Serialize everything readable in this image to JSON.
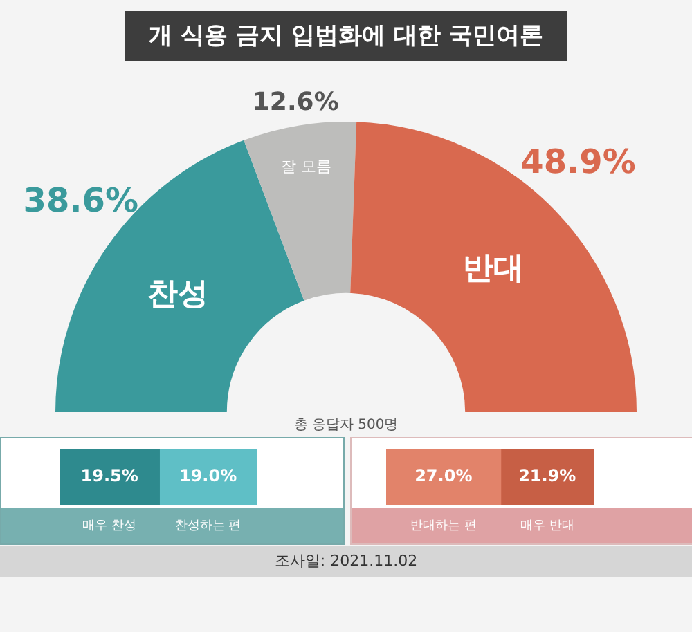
{
  "chart_data": [
    {
      "type": "donut",
      "title": "개 식용 금지 입법화에 대한 국민여론",
      "categories": [
        "찬성",
        "잘 모름",
        "반대"
      ],
      "values": [
        38.6,
        12.6,
        48.9
      ],
      "value_labels": [
        "38.6%",
        "12.6%",
        "48.9%"
      ],
      "colors": [
        "#3a9a9c",
        "#bdbdbb",
        "#d9694f"
      ],
      "annotations": [
        "총 응답자 500명",
        "조사일: 2021.11.02"
      ]
    },
    {
      "type": "bar",
      "orientation": "horizontal",
      "stacked": true,
      "categories": [
        null
      ],
      "series": [
        {
          "name": "매우 찬성",
          "color": "#2e8a8e",
          "values": [
            19.5
          ],
          "value_labels": [
            "19.5%"
          ]
        },
        {
          "name": "찬성하는 편",
          "color": "#5fbfc6",
          "values": [
            19.0
          ],
          "value_labels": [
            "19.0%"
          ]
        }
      ],
      "grid": false,
      "tick_labels": false
    },
    {
      "type": "bar",
      "orientation": "horizontal",
      "stacked": true,
      "categories": [
        null
      ],
      "series": [
        {
          "name": "반대하는 편",
          "color": "#e2836a",
          "values": [
            27.0
          ],
          "value_labels": [
            "27.0%"
          ]
        },
        {
          "name": "매우 반대",
          "color": "#c75f45",
          "values": [
            21.9
          ],
          "value_labels": [
            "21.9%"
          ]
        }
      ],
      "grid": false,
      "tick_labels": false
    }
  ]
}
